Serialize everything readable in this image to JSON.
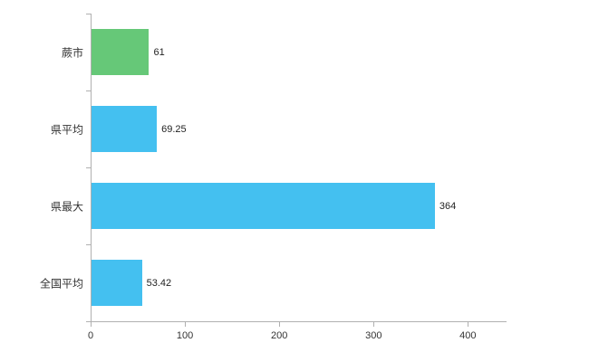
{
  "chart_data": {
    "type": "bar",
    "orientation": "horizontal",
    "title": "",
    "xlabel": "",
    "ylabel": "",
    "categories": [
      "蕨市",
      "県平均",
      "県最大",
      "全国平均"
    ],
    "values": [
      61,
      69.25,
      364,
      53.42
    ],
    "value_labels": [
      "61",
      "69.25",
      "364",
      "53.42"
    ],
    "bar_colors": [
      "#66c878",
      "#44c0f0",
      "#44c0f0",
      "#44c0f0"
    ],
    "xlim": [
      0,
      440
    ],
    "xticks": [
      0,
      100,
      200,
      300,
      400
    ],
    "grid": false,
    "legend": false,
    "axis_color": "#b0b0b0",
    "background_color": "#ffffff"
  }
}
